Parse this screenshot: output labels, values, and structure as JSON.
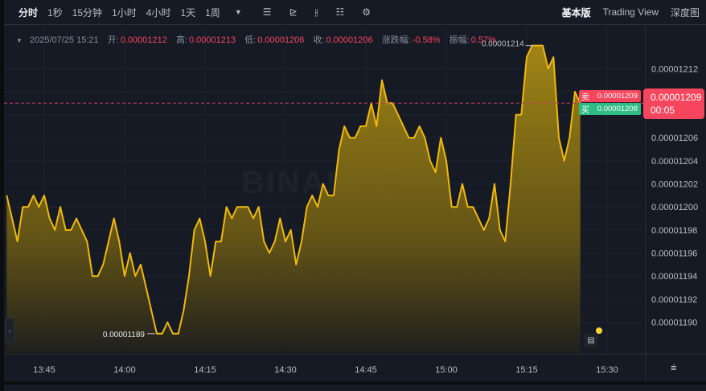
{
  "toolbar": {
    "timeframes": [
      "分时",
      "1秒",
      "15分钟",
      "1小时",
      "4小时",
      "1天",
      "1周"
    ],
    "active_timeframe": "分时",
    "more_icon": "caret-down-icon",
    "tools": [
      "candle-type-icon",
      "indicator-icon",
      "price-tools-icon",
      "display-settings-icon",
      "gear-icon"
    ],
    "views": [
      "基本版",
      "Trading View",
      "深度图"
    ],
    "active_view": "基本版"
  },
  "ohlc": {
    "datetime": "2025/07/25 15:21",
    "open_label": "开:",
    "open": "0.00001212",
    "high_label": "高:",
    "high": "0.00001213",
    "low_label": "低:",
    "low": "0.00001206",
    "close_label": "收:",
    "close": "0.00001206",
    "change_label": "涨跌幅:",
    "change": "-0.58%",
    "amplitude_label": "振幅:",
    "amplitude": "0.57%"
  },
  "order_book": {
    "sell_label": "卖",
    "sell_price": "0.00001209",
    "buy_label": "买",
    "buy_price": "0.00001208"
  },
  "last_price": {
    "price": "0.00001209",
    "countdown": "00:05"
  },
  "watermark": "BINANCE",
  "colors": {
    "line": "#f0b90b",
    "up": "#2ebd85",
    "down": "#f6465d",
    "background": "#161a25"
  },
  "chart_data": {
    "type": "area",
    "x": [
      "13:38",
      "13:39",
      "13:40",
      "13:41",
      "13:42",
      "13:43",
      "13:44",
      "13:45",
      "13:46",
      "13:47",
      "13:48",
      "13:49",
      "13:50",
      "13:51",
      "13:52",
      "13:53",
      "13:54",
      "13:55",
      "13:56",
      "13:57",
      "13:58",
      "13:59",
      "14:00",
      "14:01",
      "14:02",
      "14:03",
      "14:04",
      "14:05",
      "14:06",
      "14:07",
      "14:08",
      "14:09",
      "14:10",
      "14:11",
      "14:12",
      "14:13",
      "14:14",
      "14:15",
      "14:16",
      "14:17",
      "14:18",
      "14:19",
      "14:20",
      "14:21",
      "14:22",
      "14:23",
      "14:24",
      "14:25",
      "14:26",
      "14:27",
      "14:28",
      "14:29",
      "14:30",
      "14:31",
      "14:32",
      "14:33",
      "14:34",
      "14:35",
      "14:36",
      "14:37",
      "14:38",
      "14:39",
      "14:40",
      "14:41",
      "14:42",
      "14:43",
      "14:44",
      "14:45",
      "14:46",
      "14:47",
      "14:48",
      "14:49",
      "14:50",
      "14:51",
      "14:52",
      "14:53",
      "14:54",
      "14:55",
      "14:56",
      "14:57",
      "14:58",
      "14:59",
      "15:00",
      "15:01",
      "15:02",
      "15:03",
      "15:04",
      "15:05",
      "15:06",
      "15:07",
      "15:08",
      "15:09",
      "15:10",
      "15:11",
      "15:12",
      "15:13",
      "15:14",
      "15:15",
      "15:16",
      "15:17",
      "15:18",
      "15:19",
      "15:20",
      "15:21",
      "15:22",
      "15:23",
      "15:24",
      "15:25"
    ],
    "values": [
      1.201e-05,
      1.199e-05,
      1.197e-05,
      1.2e-05,
      1.2e-05,
      1.201e-05,
      1.2e-05,
      1.201e-05,
      1.199e-05,
      1.198e-05,
      1.2e-05,
      1.198e-05,
      1.198e-05,
      1.199e-05,
      1.198e-05,
      1.197e-05,
      1.194e-05,
      1.194e-05,
      1.195e-05,
      1.197e-05,
      1.199e-05,
      1.197e-05,
      1.194e-05,
      1.196e-05,
      1.194e-05,
      1.195e-05,
      1.193e-05,
      1.191e-05,
      1.189e-05,
      1.189e-05,
      1.19e-05,
      1.189e-05,
      1.189e-05,
      1.191e-05,
      1.194e-05,
      1.198e-05,
      1.199e-05,
      1.197e-05,
      1.194e-05,
      1.197e-05,
      1.197e-05,
      1.2e-05,
      1.199e-05,
      1.2e-05,
      1.2e-05,
      1.2e-05,
      1.199e-05,
      1.2e-05,
      1.197e-05,
      1.196e-05,
      1.197e-05,
      1.199e-05,
      1.197e-05,
      1.198e-05,
      1.195e-05,
      1.197e-05,
      1.2e-05,
      1.201e-05,
      1.2e-05,
      1.202e-05,
      1.201e-05,
      1.201e-05,
      1.205e-05,
      1.207e-05,
      1.206e-05,
      1.206e-05,
      1.207e-05,
      1.207e-05,
      1.209e-05,
      1.207e-05,
      1.211e-05,
      1.209e-05,
      1.209e-05,
      1.208e-05,
      1.207e-05,
      1.206e-05,
      1.206e-05,
      1.207e-05,
      1.206e-05,
      1.204e-05,
      1.203e-05,
      1.206e-05,
      1.204e-05,
      1.2e-05,
      1.2e-05,
      1.202e-05,
      1.2e-05,
      1.2e-05,
      1.199e-05,
      1.198e-05,
      1.199e-05,
      1.202e-05,
      1.198e-05,
      1.197e-05,
      1.202e-05,
      1.208e-05,
      1.208e-05,
      1.213e-05,
      1.214e-05,
      1.214e-05,
      1.214e-05,
      1.212e-05,
      1.213e-05,
      1.206e-05,
      1.204e-05,
      1.206e-05,
      1.21e-05,
      1.209e-05
    ],
    "x_ticks": [
      "13:45",
      "14:00",
      "14:15",
      "14:30",
      "14:45",
      "15:00",
      "15:15",
      "15:30"
    ],
    "y_ticks": [
      "0.00001190",
      "0.00001192",
      "0.00001194",
      "0.00001196",
      "0.00001198",
      "0.00001200",
      "0.00001202",
      "0.00001204",
      "0.00001206",
      "0.00001208",
      "0.00001210",
      "0.00001212"
    ],
    "ylim": [
      1.1878e-05,
      1.2153e-05
    ],
    "xlim": [
      "13:38",
      "15:32"
    ],
    "low_annotation": "0.00001189",
    "high_annotation": "0.00001214",
    "current_price_line": 1.209e-05,
    "grid": true,
    "y_axis_position": "right"
  }
}
